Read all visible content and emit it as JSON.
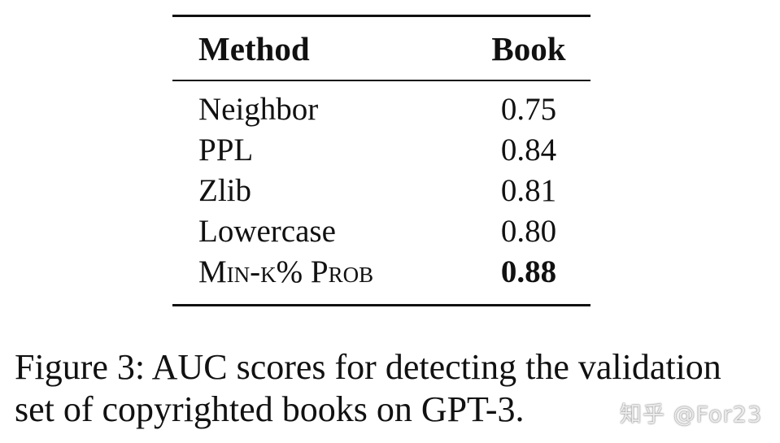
{
  "table": {
    "headers": [
      "Method",
      "Book"
    ],
    "rows": [
      {
        "method": "Neighbor",
        "book": "0.75"
      },
      {
        "method": "PPL",
        "book": "0.84"
      },
      {
        "method": "Zlib",
        "book": "0.81"
      },
      {
        "method": "Lowercase",
        "book": "0.80"
      },
      {
        "method": "Min-k% Prob",
        "book": "0.88"
      }
    ]
  },
  "caption": "Figure 3: AUC scores for detecting the validation set of copyrighted books on GPT-3.",
  "watermark": "知乎 @For23"
}
